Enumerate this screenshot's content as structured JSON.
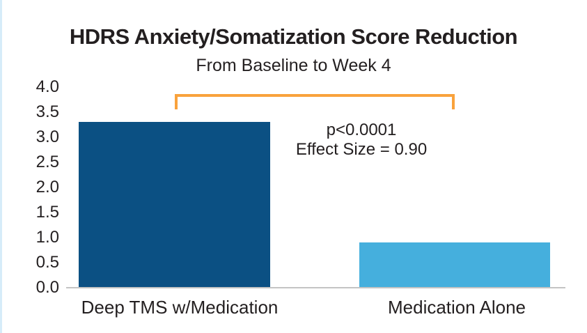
{
  "header": {
    "title": "HDRS Anxiety/Somatization Score Reduction",
    "subtitle": "From Baseline to Week 4"
  },
  "chart_data": {
    "type": "bar",
    "title": "HDRS Anxiety/Somatization Score Reduction",
    "subtitle": "From Baseline to Week 4",
    "categories": [
      "Deep TMS w/Medication",
      "Medication Alone"
    ],
    "values": [
      3.3,
      0.9
    ],
    "bar_colors": [
      "#0B5083",
      "#45AFDD"
    ],
    "xlabel": "",
    "ylabel": "",
    "ylim": [
      0,
      4
    ],
    "ytick_step": 0.5,
    "ytick_labels": [
      "4.0",
      "3.5",
      "3.0",
      "2.5",
      "2.0",
      "1.5",
      "1.0",
      "0.5",
      "0.0"
    ],
    "grid": false,
    "legend": false,
    "annotations": {
      "p_value": "p<0.0001",
      "effect_size": "Effect Size = 0.90",
      "bracket_between": [
        "Deep TMS w/Medication",
        "Medication Alone"
      ]
    }
  },
  "colors": {
    "bar_dark_blue": "#0B5083",
    "bar_light_blue": "#45AFDD",
    "bracket_orange": "#F9A23C",
    "axis_line_gray": "#C4C4C4",
    "text_dark": "#231F20",
    "left_strip_blue": "#D6ECF9"
  }
}
